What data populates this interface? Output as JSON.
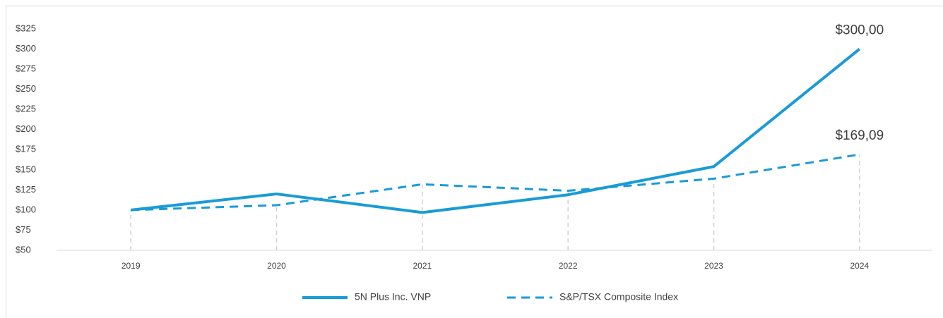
{
  "chart_data": {
    "type": "line",
    "categories": [
      "2019",
      "2020",
      "2021",
      "2022",
      "2023",
      "2024"
    ],
    "series": [
      {
        "name": "5N Plus Inc. VNP",
        "color": "#1a9bd7",
        "dash": false,
        "values": [
          100,
          120,
          97,
          119,
          154,
          300
        ],
        "value_labels": [
          null,
          null,
          null,
          null,
          null,
          "$300,00"
        ]
      },
      {
        "name": "S&P/TSX Composite Index",
        "color": "#1a9bd7",
        "dash": true,
        "values": [
          100,
          106,
          132,
          124,
          139,
          169.09
        ],
        "value_labels": [
          null,
          null,
          null,
          null,
          null,
          "$169,09"
        ]
      }
    ],
    "ylim": [
      50,
      325
    ],
    "yticks": [
      {
        "value": 50,
        "label": "$50"
      },
      {
        "value": 75,
        "label": "$75"
      },
      {
        "value": 100,
        "label": "$100"
      },
      {
        "value": 125,
        "label": "$125"
      },
      {
        "value": 150,
        "label": "$150"
      },
      {
        "value": 175,
        "label": "$175"
      },
      {
        "value": 200,
        "label": "$200"
      },
      {
        "value": 225,
        "label": "$225"
      },
      {
        "value": 250,
        "label": "$250"
      },
      {
        "value": 275,
        "label": "$275"
      },
      {
        "value": 300,
        "label": "$300"
      },
      {
        "value": 325,
        "label": "$325"
      }
    ],
    "legend": "bottom"
  }
}
